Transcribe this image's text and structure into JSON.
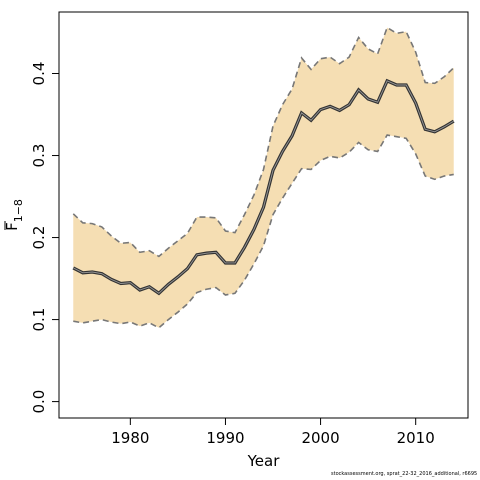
{
  "chart_data": {
    "type": "line",
    "xlabel": "Year",
    "ylabel": "F̄1−8",
    "ylabel_main": "F",
    "ylabel_sub": "1−8",
    "xlim": [
      1972.5,
      2015.5
    ],
    "ylim": [
      -0.02,
      0.475
    ],
    "x_ticks": [
      1980,
      1990,
      2000,
      2010
    ],
    "x_tick_labels": [
      "1980",
      "1990",
      "2000",
      "2010"
    ],
    "y_ticks": [
      0.0,
      0.1,
      0.2,
      0.3,
      0.4
    ],
    "y_tick_labels": [
      "0.0",
      "0.1",
      "0.2",
      "0.3",
      "0.4"
    ],
    "band_color": "#f5deb3",
    "line_color": "#333333",
    "bound_color": "#777777",
    "x": [
      1974,
      1975,
      1976,
      1977,
      1978,
      1979,
      1980,
      1981,
      1982,
      1983,
      1984,
      1985,
      1986,
      1987,
      1988,
      1989,
      1990,
      1991,
      1992,
      1993,
      1994,
      1995,
      1996,
      1997,
      1998,
      1999,
      2000,
      2001,
      2002,
      2003,
      2004,
      2005,
      2006,
      2007,
      2008,
      2009,
      2010,
      2011,
      2012,
      2013,
      2014
    ],
    "series": [
      {
        "role": "estimate",
        "values": [
          0.163,
          0.157,
          0.158,
          0.156,
          0.149,
          0.144,
          0.145,
          0.136,
          0.14,
          0.132,
          0.143,
          0.152,
          0.162,
          0.179,
          0.181,
          0.182,
          0.169,
          0.169,
          0.188,
          0.21,
          0.237,
          0.282,
          0.305,
          0.324,
          0.352,
          0.343,
          0.356,
          0.36,
          0.355,
          0.362,
          0.38,
          0.369,
          0.365,
          0.391,
          0.386,
          0.386,
          0.364,
          0.332,
          0.329,
          0.335,
          0.342
        ]
      },
      {
        "role": "upper",
        "values": [
          0.229,
          0.218,
          0.217,
          0.213,
          0.202,
          0.193,
          0.194,
          0.182,
          0.184,
          0.177,
          0.187,
          0.196,
          0.205,
          0.225,
          0.225,
          0.224,
          0.208,
          0.206,
          0.228,
          0.252,
          0.283,
          0.336,
          0.362,
          0.381,
          0.419,
          0.405,
          0.418,
          0.42,
          0.412,
          0.42,
          0.444,
          0.43,
          0.424,
          0.456,
          0.449,
          0.451,
          0.426,
          0.389,
          0.388,
          0.396,
          0.407
        ]
      },
      {
        "role": "lower",
        "values": [
          0.098,
          0.096,
          0.098,
          0.1,
          0.097,
          0.095,
          0.097,
          0.092,
          0.096,
          0.09,
          0.1,
          0.109,
          0.119,
          0.133,
          0.137,
          0.139,
          0.13,
          0.132,
          0.148,
          0.168,
          0.19,
          0.228,
          0.248,
          0.266,
          0.284,
          0.283,
          0.294,
          0.299,
          0.297,
          0.304,
          0.316,
          0.307,
          0.305,
          0.325,
          0.323,
          0.321,
          0.302,
          0.275,
          0.271,
          0.275,
          0.277
        ]
      }
    ]
  },
  "footer": {
    "text": "stockassessment.org, sprat_22-32_2016_additional, r6695"
  }
}
